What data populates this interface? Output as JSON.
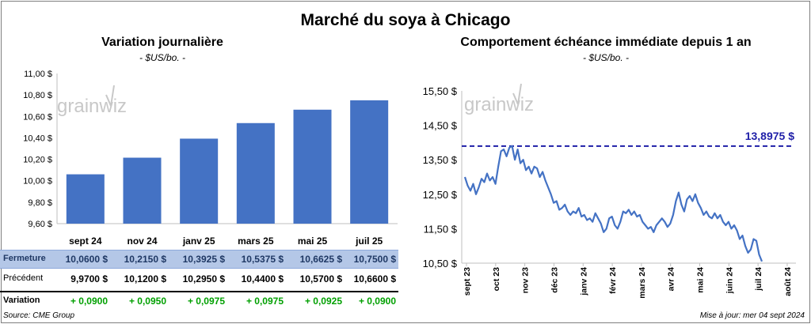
{
  "main_title": "Marché du soya à Chicago",
  "left": {
    "title": "Variation  journalière",
    "unit": "- $US/bo. -"
  },
  "right": {
    "title": "Comportement  échéance immédiate depuis 1 an",
    "unit": "- $US/bo. -"
  },
  "watermark": "grainwiz",
  "table": {
    "rows": [
      {
        "label": "Fermeture",
        "values": [
          "10,0600  $",
          "10,2150  $",
          "10,3925  $",
          "10,5375  $",
          "10,6625  $",
          "10,7500  $"
        ]
      },
      {
        "label": "Précédent",
        "values": [
          "9,9700  $",
          "10,1200  $",
          "10,2950  $",
          "10,4400  $",
          "10,5700  $",
          "10,6600  $"
        ]
      },
      {
        "label": "Variation",
        "values": [
          "+ 0,0900",
          "+ 0,0950",
          "+ 0,0975",
          "+ 0,0975",
          "+ 0,0925",
          "+ 0,0900"
        ]
      }
    ]
  },
  "source": "Source: CME Group",
  "updated": "Mise à jour: mer 04 sept 2024",
  "colors": {
    "bar": "#4472c4",
    "line": "#4472c4",
    "ref": "#1f1fa8",
    "positive": "#00a000",
    "table_hl": "#b4c7e7"
  },
  "chart_data": [
    {
      "type": "bar",
      "title": "Variation  journalière",
      "subtitle": "- $US/bo. -",
      "categories": [
        "sept 24",
        "nov 24",
        "janv 25",
        "mars 25",
        "mai 25",
        "juil 25"
      ],
      "values": [
        10.06,
        10.215,
        10.3925,
        10.5375,
        10.6625,
        10.75
      ],
      "ylim": [
        9.6,
        11.0
      ],
      "yticks": [
        "9,60 $",
        "9,80 $",
        "10,00 $",
        "10,20 $",
        "10,40 $",
        "10,60 $",
        "10,80 $",
        "11,00 $"
      ],
      "grid": false
    },
    {
      "type": "line",
      "title": "Comportement  échéance immédiate depuis 1 an",
      "subtitle": "- $US/bo. -",
      "ylim": [
        10.5,
        15.5
      ],
      "yticks": [
        "10,50 $",
        "11,50 $",
        "12,50 $",
        "13,50 $",
        "14,50 $",
        "15,50 $"
      ],
      "xticks": [
        "sept 23",
        "oct 23",
        "nov 23",
        "déc 23",
        "janv 24",
        "févr 24",
        "mars 24",
        "avr 24",
        "mai 24",
        "juin 24",
        "juil 24",
        "août 24"
      ],
      "reference": {
        "value": 13.8975,
        "label": "13,8975  $"
      },
      "series": [
        {
          "values": [
            13.0,
            12.75,
            12.6,
            12.8,
            12.5,
            12.7,
            12.95,
            12.85,
            13.1,
            12.9,
            13.0,
            12.8,
            13.3,
            13.75,
            13.8,
            13.6,
            13.85,
            13.9,
            13.5,
            13.8,
            13.4,
            13.5,
            13.2,
            13.3,
            13.1,
            13.3,
            13.25,
            13.0,
            13.15,
            12.9,
            12.7,
            12.5,
            12.25,
            12.3,
            12.05,
            12.1,
            12.2,
            12.0,
            11.9,
            12.0,
            11.95,
            12.1,
            11.85,
            11.9,
            11.75,
            11.8,
            11.7,
            11.95,
            11.8,
            11.65,
            11.4,
            11.5,
            11.8,
            11.85,
            11.6,
            11.5,
            11.7,
            12.0,
            11.95,
            12.05,
            11.9,
            12.0,
            11.85,
            11.9,
            11.7,
            11.6,
            11.5,
            11.55,
            11.4,
            11.6,
            11.7,
            11.8,
            11.7,
            11.55,
            11.65,
            11.9,
            12.3,
            12.55,
            12.2,
            12.0,
            12.35,
            12.45,
            12.3,
            12.5,
            12.25,
            12.1,
            11.9,
            12.0,
            11.85,
            11.8,
            11.95,
            11.8,
            11.9,
            11.7,
            11.6,
            11.7,
            11.5,
            11.6,
            11.45,
            11.2,
            11.3,
            11.0,
            10.8,
            10.9,
            11.2,
            11.15,
            10.75,
            10.55
          ]
        }
      ]
    }
  ]
}
